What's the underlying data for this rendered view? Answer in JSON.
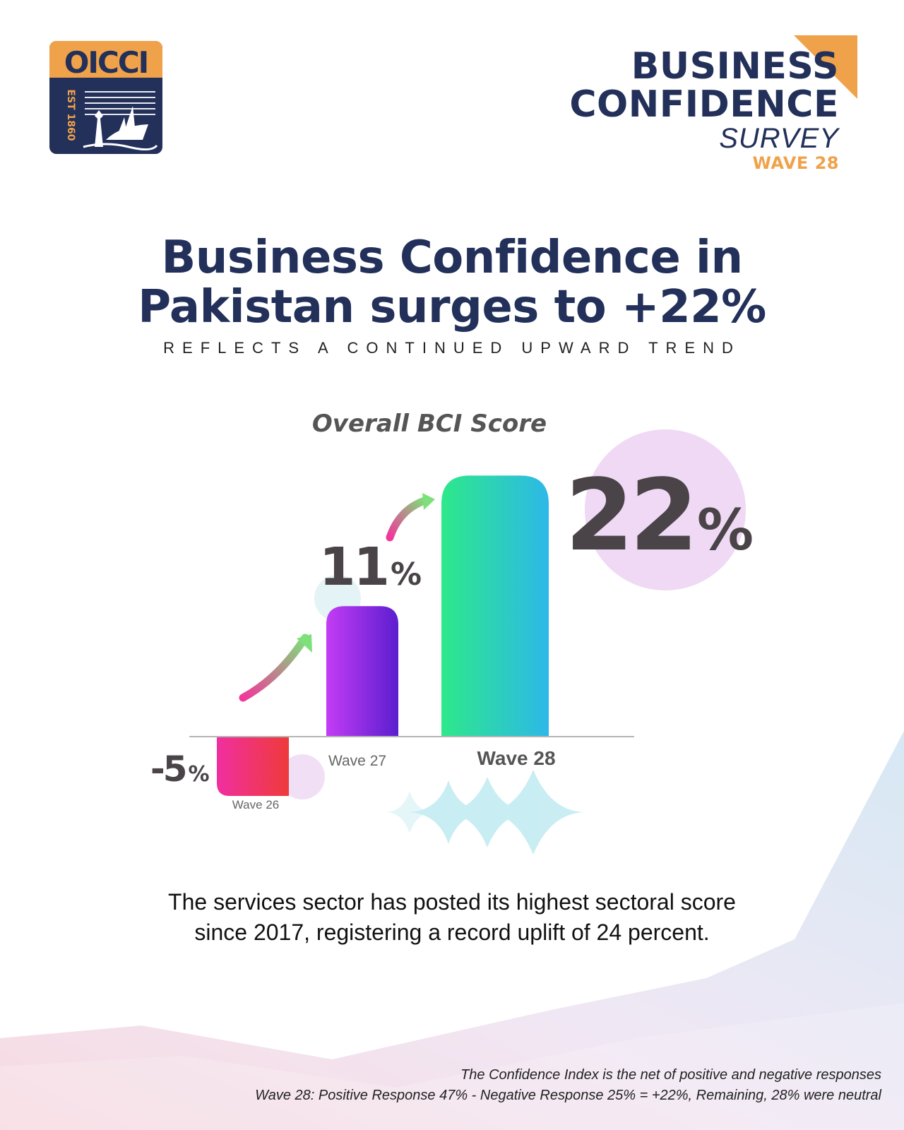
{
  "logo": {
    "text": "OICCI",
    "est": "EST 1860"
  },
  "brand": {
    "line1": "BUSINESS",
    "line2": "CONFIDENCE",
    "line3": "SURVEY",
    "line4": "WAVE 28",
    "accent_color": "#f0a24a",
    "navy_color": "#22305a"
  },
  "headline": {
    "line1": "Business Confidence in",
    "line2": "Pakistan surges to +22%"
  },
  "subhead": "REFLECTS A CONTINUED UPWARD TREND",
  "chart_data": {
    "type": "bar",
    "title": "Overall BCI Score",
    "categories": [
      "Wave 26",
      "Wave 27",
      "Wave 28"
    ],
    "values": [
      -5,
      11,
      22
    ],
    "value_labels": [
      "-5",
      "11",
      "22"
    ],
    "unit": "%",
    "ylim": [
      -6,
      24
    ],
    "grid": false,
    "legend": "none",
    "colors": [
      [
        "#f02fa0",
        "#ef3a3a"
      ],
      [
        "#c33cf5",
        "#5b1ecf"
      ],
      [
        "#2de88a",
        "#2db8e8"
      ]
    ]
  },
  "body_text": "The services sector has posted its highest sectoral score since 2017, registering a record uplift of 24 percent.",
  "footnotes": {
    "line1": "The Confidence Index is the net of positive and negative responses",
    "line2": "Wave 28: Positive Response 47% - Negative Response 25% = +22%, Remaining, 28% were neutral"
  }
}
